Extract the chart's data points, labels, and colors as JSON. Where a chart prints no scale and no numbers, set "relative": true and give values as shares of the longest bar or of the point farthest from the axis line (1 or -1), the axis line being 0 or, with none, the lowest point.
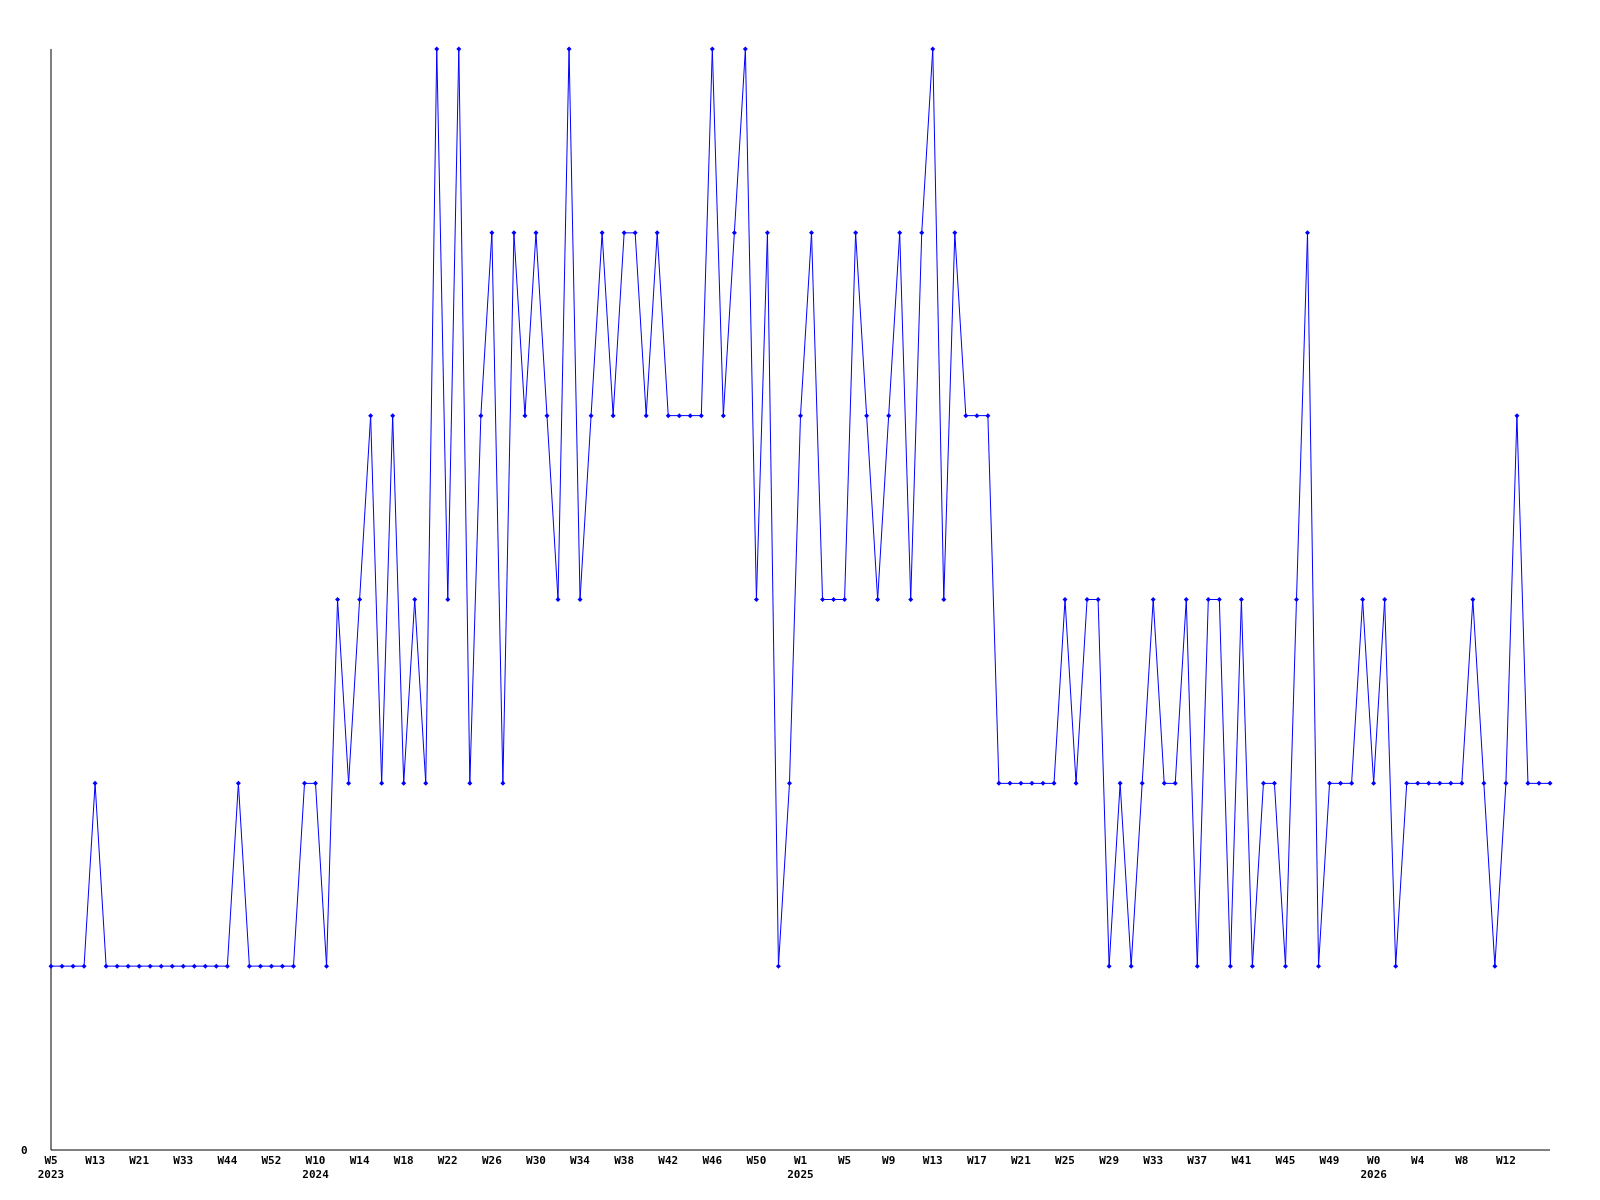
{
  "chart_data": {
    "type": "line",
    "relative": true,
    "marker": "diamond",
    "line_style": "solid",
    "annotations": [
      "0"
    ],
    "categories": [
      "W5\n2023",
      null,
      null,
      null,
      "W13",
      null,
      null,
      null,
      "W21",
      null,
      null,
      null,
      "W33",
      null,
      null,
      null,
      "W44",
      null,
      null,
      null,
      "W52",
      null,
      null,
      null,
      "W10\n2024",
      null,
      null,
      null,
      "W14",
      null,
      null,
      null,
      "W18",
      null,
      null,
      null,
      "W22",
      null,
      null,
      null,
      "W26",
      null,
      null,
      null,
      "W30",
      null,
      null,
      null,
      "W34",
      null,
      null,
      null,
      "W38",
      null,
      null,
      null,
      "W42",
      null,
      null,
      null,
      "W46",
      null,
      null,
      null,
      "W50",
      null,
      null,
      null,
      "W1\n2025",
      null,
      null,
      null,
      "W5",
      null,
      null,
      null,
      "W9",
      null,
      null,
      null,
      "W13",
      null,
      null,
      null,
      "W17",
      null,
      null,
      null,
      "W21",
      null,
      null,
      null,
      "W25",
      null,
      null,
      null,
      "W29",
      null,
      null,
      null,
      "W33",
      null,
      null,
      null,
      "W37",
      null,
      null,
      null,
      "W41",
      null,
      null,
      null,
      "W45",
      null,
      null,
      null,
      "W49",
      null,
      null,
      null,
      "W0\n2026",
      null,
      null,
      null,
      "W4",
      null,
      null,
      null,
      "W8",
      null,
      null,
      null,
      "W12",
      null,
      null,
      null,
      null
    ],
    "series": [
      {
        "color": "#0000ff",
        "values": [
          0.167,
          0.167,
          0.167,
          0.167,
          0.333,
          0.167,
          0.167,
          0.167,
          0.167,
          0.167,
          0.167,
          0.167,
          0.167,
          0.167,
          0.167,
          0.167,
          0.167,
          0.333,
          0.167,
          0.167,
          0.167,
          0.167,
          0.167,
          0.333,
          0.333,
          0.167,
          0.5,
          0.333,
          0.5,
          0.667,
          0.333,
          0.667,
          0.333,
          0.5,
          0.333,
          1,
          0.5,
          1,
          0.333,
          0.667,
          0.833,
          0.333,
          0.833,
          0.667,
          0.833,
          0.667,
          0.5,
          1,
          0.5,
          0.667,
          0.833,
          0.667,
          0.833,
          0.833,
          0.667,
          0.833,
          0.667,
          0.667,
          0.667,
          0.667,
          1,
          0.667,
          0.833,
          1,
          0.5,
          0.833,
          0.167,
          0.333,
          0.667,
          0.833,
          0.5,
          0.5,
          0.5,
          0.833,
          0.667,
          0.5,
          0.667,
          0.833,
          0.5,
          0.833,
          1,
          0.5,
          0.833,
          0.667,
          0.667,
          0.667,
          0.333,
          0.333,
          0.333,
          0.333,
          0.333,
          0.333,
          0.5,
          0.333,
          0.5,
          0.5,
          0.167,
          0.333,
          0.167,
          0.333,
          0.5,
          0.333,
          0.333,
          0.5,
          0.167,
          0.5,
          0.5,
          0.167,
          0.5,
          0.167,
          0.333,
          0.333,
          0.167,
          0.5,
          0.833,
          0.167,
          0.333,
          0.333,
          0.333,
          0.5,
          0.333,
          0.5,
          0.167,
          0.333,
          0.333,
          0.333,
          0.333,
          0.333,
          0.333,
          0.5,
          0.333,
          0.167,
          0.333,
          0.667,
          0.333,
          0.333,
          0.333
        ]
      }
    ]
  }
}
